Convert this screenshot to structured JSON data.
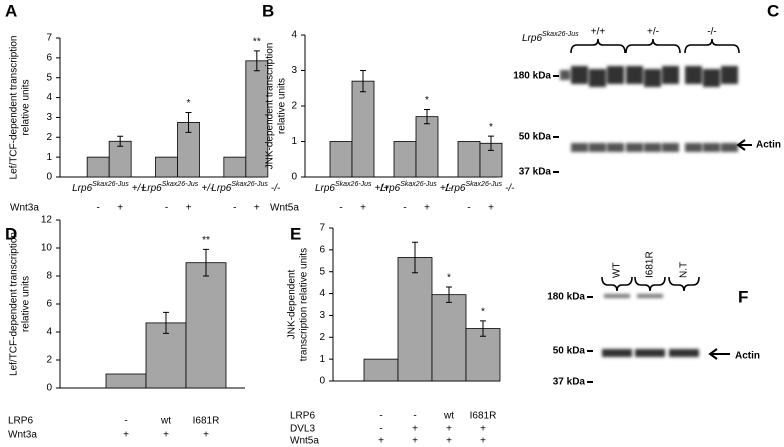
{
  "chart_data": [
    {
      "type": "bar",
      "panel": "A",
      "ylabel": [
        "Lef/TCF-dependent transcription",
        "relative units"
      ],
      "ylim": [
        0,
        7
      ],
      "yticks": [
        0,
        1,
        2,
        3,
        4,
        5,
        6,
        7
      ],
      "color": "#a6a6a6",
      "values": [
        1,
        1.8,
        1,
        2.75,
        1,
        5.85
      ],
      "errors": [
        null,
        0.25,
        null,
        0.5,
        null,
        0.5
      ],
      "stars": [
        null,
        null,
        null,
        "*",
        null,
        "**"
      ],
      "groups": [
        {
          "gene": "Lrp6",
          "allele": "Skax26-Jus",
          "genotype": "+/+"
        },
        {
          "gene": "Lrp6",
          "allele": "Skax26-Jus",
          "genotype": "+/-"
        },
        {
          "gene": "Lrp6",
          "allele": "Skax26-Jus",
          "genotype": "-/-"
        }
      ],
      "rows": [
        {
          "label": "Wnt3a",
          "values": [
            "-",
            "+",
            "-",
            "+",
            "-",
            "+"
          ]
        }
      ]
    },
    {
      "type": "bar",
      "panel": "B",
      "ylabel": [
        "JNK-dependent transcription",
        "relative units"
      ],
      "ylim": [
        0,
        4
      ],
      "yticks": [
        0,
        1,
        2,
        3,
        4
      ],
      "color": "#a6a6a6",
      "values": [
        1,
        2.7,
        1,
        1.7,
        1,
        0.95
      ],
      "errors": [
        null,
        0.3,
        null,
        0.2,
        null,
        0.2
      ],
      "stars": [
        null,
        null,
        null,
        "*",
        null,
        "*"
      ],
      "groups": [
        {
          "gene": "Lrp6",
          "allele": "Skax26-Jus",
          "genotype": "+/+"
        },
        {
          "gene": "Lrp6",
          "allele": "Skax26-Jus",
          "genotype": "+/-"
        },
        {
          "gene": "Lrp6",
          "allele": "Skax26-Jus",
          "genotype": "-/-"
        }
      ],
      "rows": [
        {
          "label": "Wnt5a",
          "values": [
            "-",
            "+",
            "-",
            "+",
            "-",
            "+"
          ]
        }
      ]
    },
    {
      "type": "blot",
      "panel": "C",
      "gene": "Lrp6",
      "allele": "Skax26-Jus",
      "lanes": [
        "+/+",
        "+/-",
        "-/-"
      ],
      "markers": [
        "180 kDa",
        "50 kDa",
        "37 kDa"
      ],
      "band_label": "Actin"
    },
    {
      "type": "bar",
      "panel": "D",
      "ylabel": [
        "Lef/TCF-dependent transcription",
        "relative units"
      ],
      "ylim": [
        0,
        12
      ],
      "yticks": [
        0,
        2,
        4,
        6,
        8,
        10,
        12
      ],
      "color": "#a6a6a6",
      "values": [
        1,
        4.65,
        8.95
      ],
      "errors": [
        null,
        0.75,
        0.95
      ],
      "stars": [
        null,
        null,
        "**"
      ],
      "rows": [
        {
          "label": "LRP6",
          "values": [
            "-",
            "wt",
            "I681R"
          ]
        },
        {
          "label": "Wnt3a",
          "values": [
            "+",
            "+",
            "+"
          ]
        }
      ]
    },
    {
      "type": "bar",
      "panel": "E",
      "ylabel": [
        "JNK-dependent",
        "transcription relative units"
      ],
      "ylim": [
        0,
        7
      ],
      "yticks": [
        0,
        1,
        2,
        3,
        4,
        5,
        6,
        7
      ],
      "color": "#a6a6a6",
      "values": [
        1,
        5.65,
        3.95,
        2.4
      ],
      "errors": [
        null,
        0.7,
        0.35,
        0.35
      ],
      "stars": [
        null,
        null,
        "*",
        "*"
      ],
      "rows": [
        {
          "label": "LRP6",
          "values": [
            "-",
            "-",
            "wt",
            "I681R"
          ]
        },
        {
          "label": "DVL3",
          "values": [
            "-",
            "+",
            "+",
            "+"
          ]
        },
        {
          "label": "Wnt5a",
          "values": [
            "+",
            "+",
            "+",
            "+"
          ]
        }
      ]
    },
    {
      "type": "blot",
      "panel": "F",
      "lanes": [
        "WT",
        "I681R",
        "N.T"
      ],
      "markers": [
        "180 kDa",
        "50 kDa",
        "37 kDa"
      ],
      "band_label": "Actin"
    }
  ]
}
